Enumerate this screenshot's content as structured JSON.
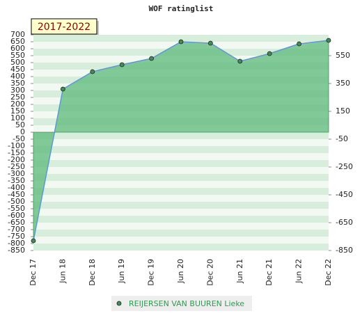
{
  "chart_data": {
    "type": "area",
    "title": "WOF ratinglist",
    "annotation": "2017-2022",
    "categories": [
      "Dec 17",
      "Jun 18",
      "Dec 18",
      "Jun 19",
      "Dec 19",
      "Jun 20",
      "Dec 20",
      "Jun 21",
      "Dec 21",
      "Jun 22",
      "Dec 22"
    ],
    "series": [
      {
        "name": "REIJERSEN VAN BUUREN Lieke",
        "color": "#5b9bd5",
        "fill": "#5cb87a",
        "marker_color": "#3f8f55",
        "values": [
          -780,
          310,
          435,
          485,
          530,
          650,
          640,
          510,
          565,
          635,
          660
        ]
      }
    ],
    "ylim": [
      -850,
      700
    ],
    "yticks": [
      700,
      650,
      600,
      550,
      500,
      450,
      400,
      350,
      300,
      250,
      200,
      150,
      100,
      50,
      0,
      -50,
      -100,
      -150,
      -200,
      -250,
      -300,
      -350,
      -400,
      -450,
      -500,
      -550,
      -600,
      -650,
      -700,
      -750,
      -800,
      -850
    ],
    "y2lim": [
      -850,
      700
    ],
    "y2ticks": [
      550,
      350,
      150,
      -50,
      -250,
      -450,
      -650,
      -850
    ],
    "legend": "bottom"
  }
}
